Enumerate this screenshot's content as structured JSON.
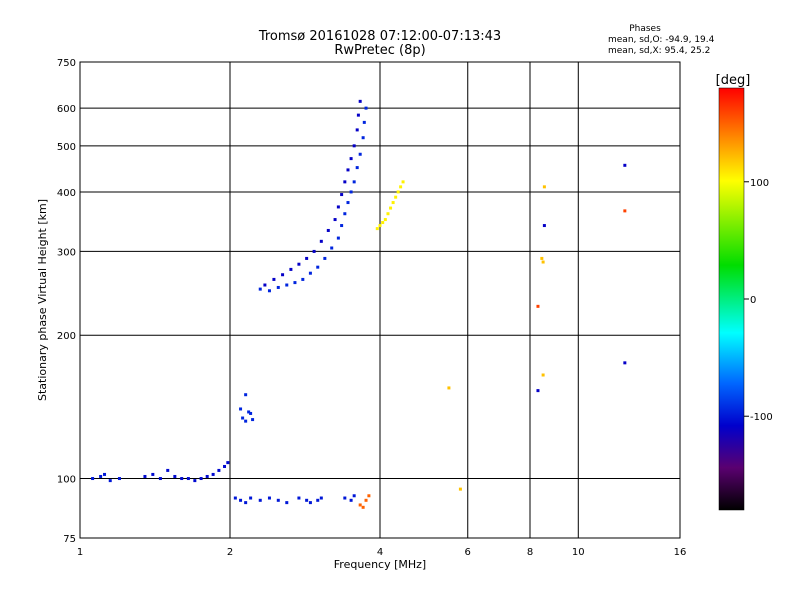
{
  "chart_data": {
    "type": "scatter",
    "title": "Tromsø 20161028 07:12:00-07:13:43",
    "subtitle": "RwPretec (8p)",
    "xlabel": "Frequency [MHz]",
    "ylabel": "Stationary phase Virtual Height [km]",
    "x_scale": "log",
    "y_scale": "log",
    "xlim": [
      1,
      16
    ],
    "ylim": [
      75,
      750
    ],
    "x_ticks": [
      1,
      2,
      4,
      6,
      8,
      10,
      16
    ],
    "y_ticks": [
      75,
      100,
      200,
      300,
      400,
      500,
      600,
      750
    ],
    "x_ticklabels": [
      "1",
      "2",
      "4",
      "6",
      "8",
      "10",
      "16"
    ],
    "y_ticklabels": [
      "75",
      "100",
      "200",
      "300",
      "400",
      "500",
      "600",
      "750"
    ],
    "grid": true,
    "stats": {
      "heading": "Phases",
      "line_o": "mean, sd,O: -94.9, 19.4",
      "line_x": "mean, sd,X:  95.4, 25.2"
    },
    "colorbar": {
      "label": "[deg]",
      "range": [
        -180,
        180
      ],
      "ticks": [
        100,
        0,
        -100
      ],
      "tick_labels": [
        "100",
        "0",
        "-100"
      ]
    },
    "traces": [
      {
        "name": "",
        "phase": -100,
        "points": [
          [
            1.06,
            100
          ],
          [
            1.1,
            101
          ],
          [
            1.15,
            99
          ],
          [
            1.12,
            102
          ],
          [
            1.2,
            100
          ]
        ]
      },
      {
        "name": "",
        "phase": -105,
        "points": [
          [
            1.35,
            101
          ],
          [
            1.4,
            102
          ],
          [
            1.45,
            100
          ],
          [
            1.5,
            104
          ],
          [
            1.55,
            101
          ],
          [
            1.6,
            100
          ],
          [
            1.65,
            100
          ],
          [
            1.7,
            99
          ],
          [
            1.75,
            100
          ],
          [
            1.8,
            101
          ],
          [
            1.85,
            102
          ],
          [
            1.9,
            104
          ],
          [
            1.95,
            106
          ],
          [
            1.98,
            108
          ]
        ]
      },
      {
        "name": "",
        "phase": -95,
        "points": [
          [
            2.1,
            140
          ],
          [
            2.12,
            134
          ],
          [
            2.15,
            132
          ],
          [
            2.18,
            138
          ],
          [
            2.2,
            137
          ],
          [
            2.22,
            133
          ],
          [
            2.15,
            150
          ]
        ]
      },
      {
        "name": "",
        "phase": -100,
        "points": [
          [
            2.05,
            91
          ],
          [
            2.1,
            90
          ],
          [
            2.15,
            89
          ],
          [
            2.2,
            91
          ],
          [
            2.3,
            90
          ],
          [
            2.4,
            91
          ],
          [
            2.5,
            90
          ],
          [
            2.6,
            89
          ],
          [
            2.75,
            91
          ],
          [
            2.85,
            90
          ],
          [
            2.9,
            89
          ],
          [
            3.0,
            90
          ],
          [
            3.05,
            91
          ],
          [
            3.4,
            91
          ],
          [
            3.5,
            90
          ],
          [
            3.55,
            92
          ]
        ]
      },
      {
        "name": "",
        "phase": 150,
        "points": [
          [
            3.65,
            88
          ],
          [
            3.7,
            87
          ],
          [
            3.75,
            90
          ],
          [
            3.8,
            92
          ]
        ]
      },
      {
        "name": "",
        "phase": -95,
        "points": [
          [
            2.3,
            250
          ],
          [
            2.4,
            248
          ],
          [
            2.5,
            252
          ],
          [
            2.6,
            255
          ],
          [
            2.7,
            258
          ],
          [
            2.8,
            262
          ],
          [
            2.9,
            270
          ],
          [
            3.0,
            278
          ],
          [
            3.1,
            290
          ],
          [
            3.2,
            305
          ],
          [
            3.3,
            320
          ],
          [
            3.35,
            340
          ],
          [
            3.4,
            360
          ],
          [
            3.45,
            380
          ],
          [
            3.5,
            400
          ],
          [
            3.55,
            420
          ],
          [
            3.6,
            450
          ],
          [
            3.65,
            480
          ],
          [
            3.7,
            520
          ],
          [
            3.72,
            560
          ],
          [
            3.75,
            600
          ]
        ]
      },
      {
        "name": "",
        "phase": -110,
        "points": [
          [
            2.35,
            255
          ],
          [
            2.45,
            262
          ],
          [
            2.55,
            268
          ],
          [
            2.65,
            275
          ],
          [
            2.75,
            282
          ],
          [
            2.85,
            290
          ],
          [
            2.95,
            300
          ],
          [
            3.05,
            315
          ],
          [
            3.15,
            332
          ],
          [
            3.25,
            350
          ],
          [
            3.3,
            372
          ],
          [
            3.35,
            395
          ],
          [
            3.4,
            420
          ],
          [
            3.45,
            445
          ],
          [
            3.5,
            470
          ],
          [
            3.55,
            500
          ],
          [
            3.6,
            540
          ],
          [
            3.62,
            580
          ],
          [
            3.65,
            620
          ]
        ]
      },
      {
        "name": "",
        "phase": 105,
        "points": [
          [
            3.95,
            335
          ],
          [
            4.0,
            340
          ],
          [
            4.05,
            345
          ],
          [
            4.1,
            350
          ],
          [
            4.15,
            360
          ],
          [
            4.2,
            370
          ],
          [
            4.25,
            380
          ],
          [
            4.3,
            390
          ],
          [
            4.35,
            400
          ],
          [
            4.4,
            410
          ],
          [
            4.45,
            420
          ]
        ]
      },
      {
        "name": "",
        "phase": 120,
        "points": [
          [
            5.5,
            155
          ],
          [
            5.8,
            95
          ],
          [
            8.45,
            290
          ],
          [
            8.5,
            285
          ],
          [
            8.5,
            165
          ],
          [
            8.55,
            410
          ]
        ]
      },
      {
        "name": "",
        "phase": 160,
        "points": [
          [
            8.3,
            230
          ],
          [
            12.4,
            365
          ]
        ]
      },
      {
        "name": "",
        "phase": -110,
        "points": [
          [
            8.3,
            153
          ],
          [
            8.55,
            340
          ],
          [
            12.4,
            175
          ],
          [
            12.4,
            455
          ]
        ]
      }
    ]
  }
}
